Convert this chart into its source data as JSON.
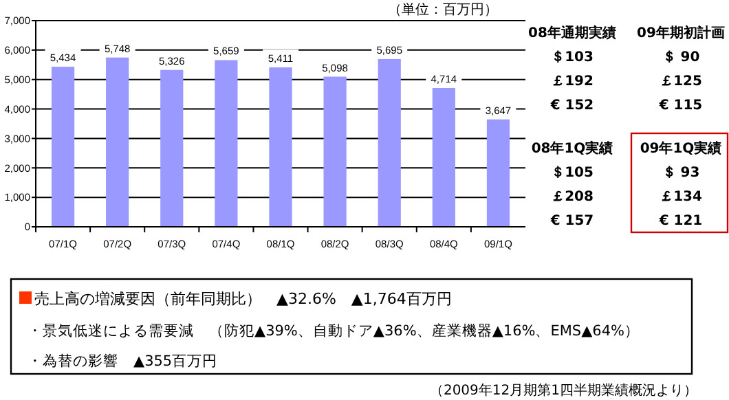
{
  "chart_data": {
    "type": "bar",
    "categories": [
      "07/1Q",
      "07/2Q",
      "07/3Q",
      "07/4Q",
      "08/1Q",
      "08/2Q",
      "08/3Q",
      "08/4Q",
      "09/1Q"
    ],
    "values": [
      5434,
      5748,
      5326,
      5659,
      5411,
      5098,
      5695,
      4714,
      3647
    ],
    "color": "#9999ff",
    "ylim": [
      0,
      7000
    ],
    "yticks": [
      {
        "value": 0,
        "label": "0"
      },
      {
        "value": 1000,
        "label": "1,000"
      },
      {
        "value": 2000,
        "label": "2,000"
      },
      {
        "value": 3000,
        "label": "3,000"
      },
      {
        "value": 4000,
        "label": "4,000"
      },
      {
        "value": 5000,
        "label": "5,000"
      },
      {
        "value": 6000,
        "label": "6,000"
      },
      {
        "value": 7000,
        "label": "7,000"
      }
    ],
    "grid": "y",
    "value_labels": [
      "5,434",
      "5,748",
      "5,326",
      "5,659",
      "5,411",
      "5,098",
      "5,695",
      "4,714",
      "3,647"
    ],
    "annotations": [
      "（単位：百万円）",
      "08年通期実績",
      "09年期初計画",
      "＄103",
      "＄ 90",
      "￡192",
      "￡125",
      "€ 152",
      "€ 115",
      "08年1Q実績",
      "09年1Q実績",
      "＄105",
      "＄ 93",
      "￡208",
      "￡134",
      "€ 157",
      "€ 121",
      "売上高の増減要因（前年同期比）　▲32.6%　▲1,764百万円",
      "・景気低迷による需要減　（防犯▲39%、自動ドア▲36%、産業機器▲16%、EMS▲64%）",
      "・為替の影響　▲355百万円",
      "（2009年12月期第1四半期業績概況より）"
    ]
  }
}
